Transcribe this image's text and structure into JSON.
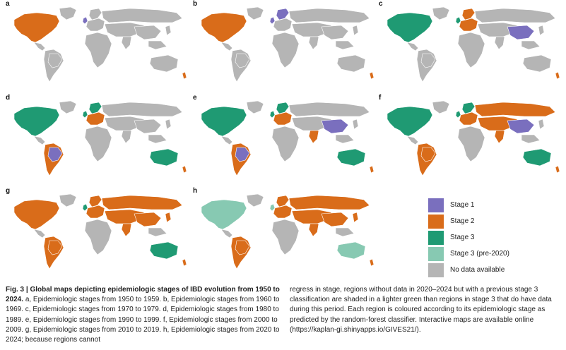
{
  "panels": [
    {
      "id": "a",
      "letter": "a",
      "fills": {
        "na": "orange",
        "greenland": "grey",
        "sa": "grey",
        "europe": "grey",
        "uk": "blue",
        "scand": "grey",
        "africa": "grey",
        "russia": "grey",
        "asia": "grey",
        "china": "grey",
        "india": "grey",
        "japan": "grey",
        "aus": "grey",
        "nz": "orange"
      }
    },
    {
      "id": "b",
      "letter": "b",
      "fills": {
        "na": "orange",
        "greenland": "grey",
        "sa": "grey",
        "europe": "grey",
        "uk": "blue",
        "scand": "blue",
        "africa": "grey",
        "russia": "grey",
        "asia": "grey",
        "china": "grey",
        "india": "grey",
        "japan": "grey",
        "aus": "grey",
        "nz": "orange"
      }
    },
    {
      "id": "c",
      "letter": "c",
      "fills": {
        "na": "green",
        "greenland": "grey",
        "sa": "grey",
        "europe": "orange",
        "uk": "green",
        "scand": "orange",
        "africa": "grey",
        "russia": "grey",
        "asia": "grey",
        "china": "blue",
        "india": "grey",
        "japan": "grey",
        "aus": "grey",
        "nz": "orange"
      }
    },
    {
      "id": "d",
      "letter": "d",
      "fills": {
        "na": "green",
        "greenland": "grey",
        "sa": "orange",
        "brazil": "blue",
        "europe": "orange",
        "uk": "green",
        "scand": "green",
        "africa": "grey",
        "russia": "grey",
        "asia": "grey",
        "china": "grey",
        "india": "grey",
        "japan": "grey",
        "aus": "green",
        "nz": "orange"
      }
    },
    {
      "id": "e",
      "letter": "e",
      "fills": {
        "na": "green",
        "greenland": "grey",
        "sa": "orange",
        "brazil": "blue",
        "europe": "orange",
        "uk": "green",
        "scand": "green",
        "africa": "grey",
        "russia": "grey",
        "asia": "grey",
        "china": "blue",
        "india": "orange",
        "japan": "grey",
        "aus": "green",
        "nz": "orange"
      }
    },
    {
      "id": "f",
      "letter": "f",
      "fills": {
        "na": "green",
        "greenland": "grey",
        "sa": "orange",
        "brazil": "orange",
        "europe": "orange",
        "uk": "green",
        "scand": "green",
        "africa": "grey",
        "russia": "orange",
        "asia": "orange",
        "china": "blue",
        "india": "orange",
        "japan": "grey",
        "aus": "green",
        "nz": "orange"
      }
    },
    {
      "id": "g",
      "letter": "g",
      "fills": {
        "na": "orange",
        "greenland": "grey",
        "sa": "orange",
        "brazil": "orange",
        "europe": "orange",
        "uk": "green",
        "scand": "orange",
        "africa": "grey",
        "russia": "orange",
        "asia": "orange",
        "china": "orange",
        "india": "orange",
        "japan": "orange",
        "aus": "green",
        "nz": "orange"
      }
    },
    {
      "id": "h",
      "letter": "h",
      "fills": {
        "na": "lightgreen",
        "greenland": "grey",
        "sa": "orange",
        "brazil": "orange",
        "europe": "orange",
        "uk": "lightgreen",
        "scand": "orange",
        "africa": "grey",
        "russia": "orange",
        "asia": "orange",
        "china": "orange",
        "india": "orange",
        "japan": "orange",
        "aus": "lightgreen",
        "nz": "orange"
      }
    }
  ],
  "colors": {
    "blue": "#7a6fbe",
    "orange": "#d96c1a",
    "green": "#1f9a73",
    "lightgreen": "#87c9b2",
    "grey": "#b5b5b5"
  },
  "legend": [
    {
      "label": "Stage 1",
      "color": "#7a6fbe"
    },
    {
      "label": "Stage 2",
      "color": "#d96c1a"
    },
    {
      "label": "Stage 3",
      "color": "#1f9a73"
    },
    {
      "label": "Stage 3 (pre-2020)",
      "color": "#87c9b2"
    },
    {
      "label": "No data available",
      "color": "#b5b5b5"
    }
  ],
  "caption": {
    "left": "Fig. 3 | Global maps depicting epidemiologic stages of IBD evolution from 1950 to 2024. a, Epidemiologic stages from 1950 to 1959. b, Epidemiologic stages from 1960 to 1969. c, Epidemiologic stages from 1970 to 1979. d, Epidemiologic stages from 1980 to 1989. e, Epidemiologic stages from 1990 to 1999. f, Epidemiologic stages from 2000 to 2009. g, Epidemiologic stages from 2010 to 2019. h, Epidemiologic stages from 2020 to 2024; because regions cannot",
    "right": "regress in stage, regions without data in 2020–2024 but with a previous stage 3 classification are shaded in a lighter green than regions in stage 3 that do have data during this period. Each region is coloured according to its epidemiologic stage as predicted by the random-forest classifier. Interactive maps are available online (https://kaplan-gi.shinyapps.io/GIVES21/)."
  }
}
